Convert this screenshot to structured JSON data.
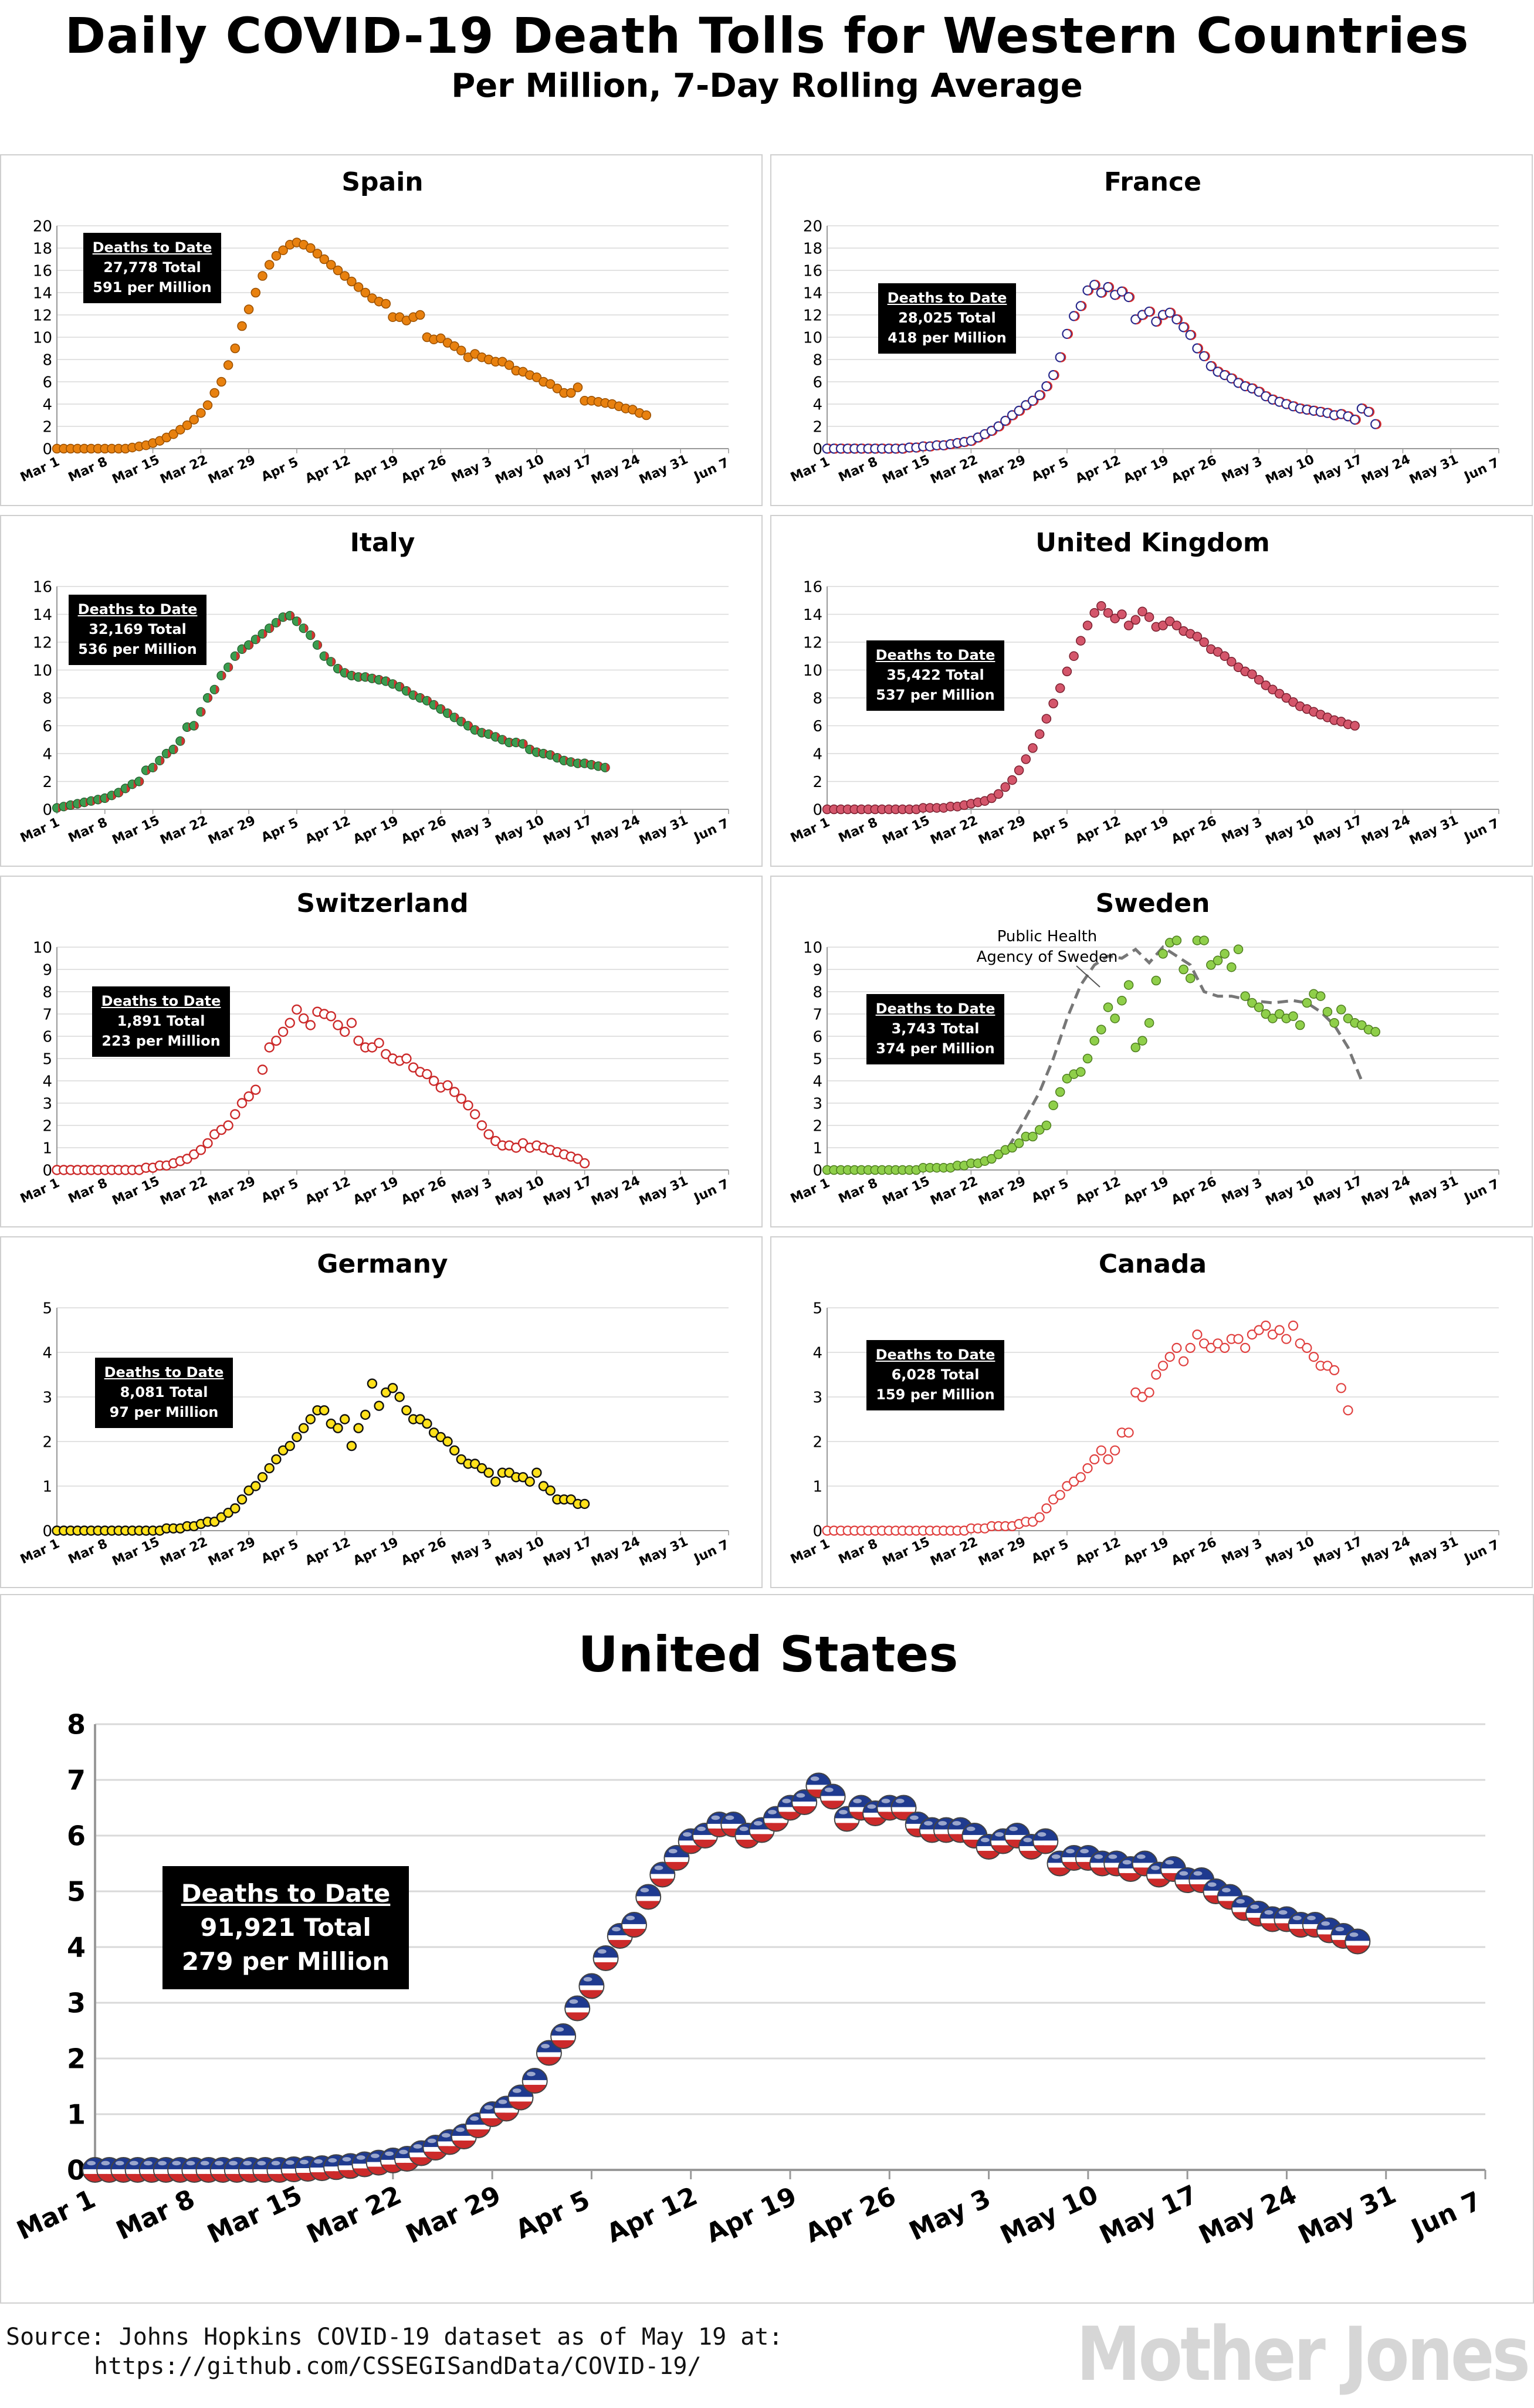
{
  "title": "Daily COVID-19 Death Tolls for Western Countries",
  "subtitle": "Per Million, 7-Day Rolling Average",
  "x_tick_labels": [
    "Mar 1",
    "Mar 8",
    "Mar 15",
    "Mar 22",
    "Mar 29",
    "Apr 5",
    "Apr 12",
    "Apr 19",
    "Apr 26",
    "May 3",
    "May 10",
    "May 17",
    "May 24",
    "May 31",
    "Jun 7"
  ],
  "box_heading": "Deaths to Date",
  "source_line1": "Source: Johns Hopkins COVID-19 dataset as of May 19 at:",
  "source_line2": "https://github.com/CSSEGISandData/COVID-19/",
  "brand": "Mother Jones",
  "colors": {
    "spain": "#e8810f",
    "france_fill": "#ffffff",
    "france_edge": "#2a2a8c",
    "france_accent": "#d42a2a",
    "italy": "#3a9c4f",
    "italy_accent": "#d43030",
    "uk": "#d4566b",
    "switzerland": "#cc2a2a",
    "sweden": "#8fcf4a",
    "germany": "#ffe11a",
    "canada": "#e0403f",
    "us_red": "#cc2a2a",
    "us_blue": "#1f3a8f",
    "grid": "#d9d9d9",
    "sweden_agency_line": "#777777"
  },
  "chart_data": [
    {
      "type": "scatter",
      "title": "Spain",
      "ylim": [
        0,
        20
      ],
      "yticks": [
        0,
        2,
        4,
        6,
        8,
        10,
        12,
        14,
        16,
        18,
        20
      ],
      "x_start": "Mar 1",
      "x_step_days": 1,
      "x_tick_step_days": 7,
      "xlim_days": [
        0,
        98
      ],
      "values": [
        0,
        0,
        0,
        0,
        0,
        0,
        0,
        0,
        0,
        0,
        0,
        0.1,
        0.2,
        0.3,
        0.5,
        0.7,
        1,
        1.3,
        1.7,
        2.1,
        2.6,
        3.2,
        3.9,
        5,
        6,
        7.5,
        9,
        11,
        12.5,
        14,
        15.5,
        16.5,
        17.3,
        17.8,
        18.3,
        18.5,
        18.3,
        18,
        17.5,
        17,
        16.5,
        16,
        15.5,
        15,
        14.5,
        14,
        13.5,
        13.2,
        13,
        11.8,
        11.8,
        11.5,
        11.8,
        12,
        10,
        9.8,
        9.9,
        9.5,
        9.2,
        8.8,
        8.2,
        8.5,
        8.2,
        8,
        7.8,
        7.8,
        7.5,
        7,
        6.9,
        6.6,
        6.4,
        6,
        5.8,
        5.4,
        5,
        5,
        5.5,
        4.3,
        4.3,
        4.2,
        4.1,
        4,
        3.8,
        3.6,
        3.5,
        3.2,
        3
      ],
      "totals": {
        "total": "27,778 Total",
        "per_million": "591 per Million"
      }
    },
    {
      "type": "scatter",
      "title": "France",
      "ylim": [
        0,
        20
      ],
      "yticks": [
        0,
        2,
        4,
        6,
        8,
        10,
        12,
        14,
        16,
        18,
        20
      ],
      "x_start": "Mar 1",
      "x_step_days": 1,
      "x_tick_step_days": 7,
      "xlim_days": [
        0,
        98
      ],
      "values": [
        0,
        0,
        0,
        0,
        0,
        0,
        0,
        0,
        0,
        0,
        0,
        0,
        0.1,
        0.1,
        0.2,
        0.2,
        0.3,
        0.3,
        0.4,
        0.5,
        0.6,
        0.7,
        1,
        1.3,
        1.6,
        2,
        2.5,
        3,
        3.4,
        3.9,
        4.3,
        4.8,
        5.6,
        6.6,
        8.2,
        10.3,
        11.9,
        12.8,
        14.2,
        14.7,
        14,
        14.5,
        13.8,
        14.1,
        13.6,
        11.6,
        12,
        12.3,
        11.4,
        12,
        12.2,
        11.6,
        10.9,
        10.2,
        9,
        8.3,
        7.4,
        6.9,
        6.6,
        6.3,
        5.9,
        5.6,
        5.4,
        5.1,
        4.7,
        4.4,
        4.2,
        4,
        3.8,
        3.6,
        3.5,
        3.4,
        3.3,
        3.2,
        3,
        3.1,
        2.9,
        2.6,
        3.6,
        3.3,
        2.2
      ],
      "totals": {
        "total": "28,025 Total",
        "per_million": "418 per Million"
      }
    },
    {
      "type": "scatter",
      "title": "Italy",
      "ylim": [
        0,
        16
      ],
      "yticks": [
        0,
        2,
        4,
        6,
        8,
        10,
        12,
        14,
        16
      ],
      "x_start": "Mar 1",
      "x_step_days": 1,
      "x_tick_step_days": 7,
      "xlim_days": [
        0,
        98
      ],
      "values": [
        0.1,
        0.2,
        0.3,
        0.4,
        0.5,
        0.6,
        0.7,
        0.8,
        1,
        1.2,
        1.5,
        1.8,
        2,
        2.8,
        3,
        3.5,
        4,
        4.3,
        4.9,
        5.9,
        6,
        7,
        8,
        8.6,
        9.6,
        10.2,
        11,
        11.5,
        11.8,
        12.2,
        12.6,
        13,
        13.4,
        13.8,
        13.9,
        13.5,
        13,
        12.5,
        11.8,
        11,
        10.6,
        10.1,
        9.8,
        9.6,
        9.5,
        9.5,
        9.4,
        9.3,
        9.2,
        9,
        8.8,
        8.5,
        8.2,
        8,
        7.8,
        7.5,
        7.2,
        6.9,
        6.6,
        6.3,
        6,
        5.7,
        5.5,
        5.4,
        5.2,
        5,
        4.8,
        4.8,
        4.7,
        4.3,
        4.1,
        4,
        3.9,
        3.7,
        3.5,
        3.4,
        3.3,
        3.3,
        3.2,
        3.1,
        3
      ],
      "totals": {
        "total": "32,169 Total",
        "per_million": "536 per Million"
      }
    },
    {
      "type": "scatter",
      "title": "United Kingdom",
      "ylim": [
        0,
        16
      ],
      "yticks": [
        0,
        2,
        4,
        6,
        8,
        10,
        12,
        14,
        16
      ],
      "x_start": "Mar 1",
      "x_step_days": 1,
      "x_tick_step_days": 7,
      "xlim_days": [
        0,
        98
      ],
      "values": [
        0,
        0,
        0,
        0,
        0,
        0,
        0,
        0,
        0,
        0,
        0,
        0,
        0,
        0,
        0.1,
        0.1,
        0.1,
        0.1,
        0.2,
        0.2,
        0.3,
        0.4,
        0.5,
        0.6,
        0.8,
        1.1,
        1.6,
        2.1,
        2.8,
        3.6,
        4.4,
        5.4,
        6.5,
        7.6,
        8.7,
        9.9,
        11,
        12.1,
        13.2,
        14.1,
        14.6,
        14.1,
        13.7,
        14,
        13.2,
        13.6,
        14.2,
        13.8,
        13.1,
        13.2,
        13.5,
        13.2,
        12.8,
        12.6,
        12.4,
        12,
        11.5,
        11.3,
        11,
        10.6,
        10.2,
        9.9,
        9.7,
        9.3,
        8.9,
        8.6,
        8.3,
        8,
        7.7,
        7.4,
        7.2,
        7,
        6.8,
        6.6,
        6.4,
        6.3,
        6.1,
        6
      ],
      "totals": {
        "total": "35,422 Total",
        "per_million": "537 per Million"
      }
    },
    {
      "type": "scatter",
      "title": "Switzerland",
      "ylim": [
        0,
        10
      ],
      "yticks": [
        0,
        1,
        2,
        3,
        4,
        5,
        6,
        7,
        8,
        9,
        10
      ],
      "x_start": "Mar 1",
      "x_step_days": 1,
      "x_tick_step_days": 7,
      "xlim_days": [
        0,
        98
      ],
      "values": [
        0,
        0,
        0,
        0,
        0,
        0,
        0,
        0,
        0,
        0,
        0,
        0,
        0,
        0.1,
        0.1,
        0.2,
        0.2,
        0.3,
        0.4,
        0.5,
        0.7,
        0.9,
        1.2,
        1.6,
        1.8,
        2,
        2.5,
        3,
        3.3,
        3.6,
        4.5,
        5.5,
        5.8,
        6.2,
        6.6,
        7.2,
        6.8,
        6.5,
        7.1,
        7,
        6.9,
        6.5,
        6.2,
        6.6,
        5.8,
        5.5,
        5.5,
        5.7,
        5.2,
        5,
        4.9,
        5,
        4.6,
        4.4,
        4.3,
        4,
        3.7,
        3.8,
        3.5,
        3.2,
        2.9,
        2.5,
        2,
        1.6,
        1.3,
        1.1,
        1.1,
        1,
        1.2,
        1,
        1.1,
        1,
        0.9,
        0.8,
        0.7,
        0.6,
        0.5,
        0.3
      ],
      "totals": {
        "total": "1,891 Total",
        "per_million": "223 per Million"
      }
    },
    {
      "type": "scatter",
      "title": "Sweden",
      "ylim": [
        0,
        10
      ],
      "yticks": [
        0,
        1,
        2,
        3,
        4,
        5,
        6,
        7,
        8,
        9,
        10
      ],
      "x_start": "Mar 1",
      "x_step_days": 1,
      "x_tick_step_days": 7,
      "xlim_days": [
        0,
        98
      ],
      "values": [
        0,
        0,
        0,
        0,
        0,
        0,
        0,
        0,
        0,
        0,
        0,
        0,
        0,
        0,
        0.1,
        0.1,
        0.1,
        0.1,
        0.1,
        0.2,
        0.2,
        0.3,
        0.3,
        0.4,
        0.5,
        0.7,
        0.9,
        1,
        1.2,
        1.5,
        1.5,
        1.8,
        2,
        2.9,
        3.5,
        4.1,
        4.3,
        4.4,
        5,
        5.8,
        6.3,
        7.3,
        6.8,
        7.6,
        8.3,
        5.5,
        5.8,
        6.6,
        8.5,
        9.7,
        10.2,
        10.3,
        9,
        8.6,
        10.3,
        10.3,
        9.2,
        9.4,
        9.7,
        9.1,
        9.9,
        7.8,
        7.5,
        7.3,
        7,
        6.8,
        7,
        6.8,
        6.9,
        6.5,
        7.5,
        7.9,
        7.8,
        7.1,
        6.6,
        7.2,
        6.8,
        6.6,
        6.5,
        6.3,
        6.2
      ],
      "annotation": "Public Health Agency of Sweden",
      "agency_line": [
        [
          20,
          0.2
        ],
        [
          23,
          0.3
        ],
        [
          26,
          0.8
        ],
        [
          28,
          1.8
        ],
        [
          31,
          3.5
        ],
        [
          33,
          5
        ],
        [
          35,
          6.8
        ],
        [
          37,
          8.3
        ],
        [
          39,
          9.2
        ],
        [
          41,
          9.6
        ],
        [
          43,
          9.5
        ],
        [
          45,
          9.9
        ],
        [
          47,
          9.3
        ],
        [
          49,
          10
        ],
        [
          51,
          9.6
        ],
        [
          53,
          9.2
        ],
        [
          55,
          8
        ],
        [
          57,
          7.8
        ],
        [
          59,
          7.8
        ],
        [
          62,
          7.6
        ],
        [
          65,
          7.5
        ],
        [
          68,
          7.6
        ],
        [
          70,
          7.5
        ],
        [
          72,
          7.1
        ],
        [
          74,
          6.5
        ],
        [
          76,
          5.5
        ],
        [
          78,
          4
        ]
      ],
      "totals": {
        "total": "3,743 Total",
        "per_million": "374 per Million"
      }
    },
    {
      "type": "scatter",
      "title": "Germany",
      "ylim": [
        0,
        5
      ],
      "yticks": [
        0,
        1,
        2,
        3,
        4,
        5
      ],
      "x_start": "Mar 1",
      "x_step_days": 1,
      "x_tick_step_days": 7,
      "xlim_days": [
        0,
        98
      ],
      "values": [
        0,
        0,
        0,
        0,
        0,
        0,
        0,
        0,
        0,
        0,
        0,
        0,
        0,
        0,
        0,
        0,
        0.05,
        0.05,
        0.05,
        0.1,
        0.1,
        0.15,
        0.2,
        0.2,
        0.3,
        0.4,
        0.5,
        0.7,
        0.9,
        1,
        1.2,
        1.4,
        1.6,
        1.8,
        1.9,
        2.1,
        2.3,
        2.5,
        2.7,
        2.7,
        2.4,
        2.3,
        2.5,
        1.9,
        2.3,
        2.6,
        3.3,
        2.8,
        3.1,
        3.2,
        3,
        2.7,
        2.5,
        2.5,
        2.4,
        2.2,
        2.1,
        2,
        1.8,
        1.6,
        1.5,
        1.5,
        1.4,
        1.3,
        1.1,
        1.3,
        1.3,
        1.2,
        1.2,
        1.1,
        1.3,
        1,
        0.9,
        0.7,
        0.7,
        0.7,
        0.6,
        0.6
      ],
      "totals": {
        "total": "8,081 Total",
        "per_million": "97 per Million"
      }
    },
    {
      "type": "scatter",
      "title": "Canada",
      "ylim": [
        0,
        5
      ],
      "yticks": [
        0,
        1,
        2,
        3,
        4,
        5
      ],
      "x_start": "Mar 1",
      "x_step_days": 1,
      "x_tick_step_days": 7,
      "xlim_days": [
        0,
        98
      ],
      "values": [
        0,
        0,
        0,
        0,
        0,
        0,
        0,
        0,
        0,
        0,
        0,
        0,
        0,
        0,
        0,
        0,
        0,
        0,
        0,
        0,
        0,
        0.05,
        0.05,
        0.05,
        0.1,
        0.1,
        0.1,
        0.1,
        0.15,
        0.2,
        0.2,
        0.3,
        0.5,
        0.7,
        0.8,
        1,
        1.1,
        1.2,
        1.4,
        1.6,
        1.8,
        1.6,
        1.8,
        2.2,
        2.2,
        3.1,
        3,
        3.1,
        3.5,
        3.7,
        3.9,
        4.1,
        3.8,
        4.1,
        4.4,
        4.2,
        4.1,
        4.2,
        4.1,
        4.3,
        4.3,
        4.1,
        4.4,
        4.5,
        4.6,
        4.4,
        4.5,
        4.3,
        4.6,
        4.2,
        4.1,
        3.9,
        3.7,
        3.7,
        3.6,
        3.2,
        2.7
      ],
      "totals": {
        "total": "6,028 Total",
        "per_million": "159 per Million"
      }
    },
    {
      "type": "scatter",
      "title": "United States",
      "ylim": [
        0,
        8
      ],
      "yticks": [
        0,
        1,
        2,
        3,
        4,
        5,
        6,
        7,
        8
      ],
      "x_start": "Mar 1",
      "x_step_days": 1,
      "x_tick_step_days": 7,
      "xlim_days": [
        0,
        98
      ],
      "values": [
        0,
        0,
        0,
        0,
        0,
        0,
        0,
        0,
        0,
        0,
        0,
        0,
        0,
        0,
        0.01,
        0.02,
        0.03,
        0.05,
        0.07,
        0.1,
        0.13,
        0.17,
        0.2,
        0.3,
        0.4,
        0.5,
        0.6,
        0.8,
        1,
        1.1,
        1.3,
        1.6,
        2.1,
        2.4,
        2.9,
        3.3,
        3.8,
        4.2,
        4.4,
        4.9,
        5.3,
        5.6,
        5.9,
        6,
        6.2,
        6.2,
        6,
        6.1,
        6.3,
        6.5,
        6.6,
        6.9,
        6.7,
        6.3,
        6.5,
        6.4,
        6.5,
        6.5,
        6.2,
        6.1,
        6.1,
        6.1,
        6,
        5.8,
        5.9,
        6,
        5.8,
        5.9,
        5.5,
        5.6,
        5.6,
        5.5,
        5.5,
        5.4,
        5.5,
        5.3,
        5.4,
        5.2,
        5.2,
        5,
        4.9,
        4.7,
        4.6,
        4.5,
        4.5,
        4.4,
        4.4,
        4.3,
        4.2,
        4.1
      ],
      "totals": {
        "total": "91,921 Total",
        "per_million": "279 per Million"
      }
    }
  ]
}
